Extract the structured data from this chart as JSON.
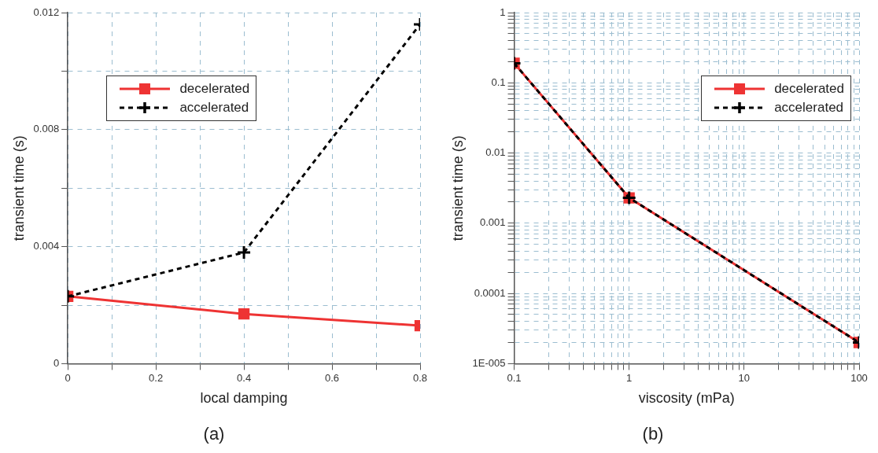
{
  "chart_data": [
    {
      "type": "line",
      "title": "(a)",
      "xlabel": "local damping",
      "ylabel": "transient time (s)",
      "x": [
        0,
        0.4,
        0.8
      ],
      "xlim": [
        0,
        0.8
      ],
      "xticks": [
        0,
        {
          "value": 0.1,
          "label": null
        },
        0.2,
        {
          "value": 0.3,
          "label": null
        },
        0.4,
        {
          "value": 0.5,
          "label": null
        },
        0.6,
        {
          "value": 0.7,
          "label": null
        },
        0.8
      ],
      "ylim": [
        0,
        0.012
      ],
      "yticks": [
        0,
        {
          "value": 0.002,
          "label": null
        },
        0.004,
        {
          "value": 0.006,
          "label": null
        },
        0.008,
        {
          "value": 0.01,
          "label": null
        },
        0.012
      ],
      "grid": true,
      "legend": "top left",
      "series": [
        {
          "name": "decelerated",
          "color": "#ee3333",
          "marker": "square",
          "line_style": "solid",
          "values": [
            0.0023,
            0.0017,
            0.0013
          ]
        },
        {
          "name": "accelerated",
          "color": "#000000",
          "marker": "cross",
          "line_style": "dashed",
          "values": [
            0.0023,
            0.0038,
            0.0116
          ]
        }
      ]
    },
    {
      "type": "line",
      "title": "(b)",
      "xlabel": "viscosity (mPa)",
      "ylabel": "transient time (s)",
      "x": [
        0.1,
        1,
        100
      ],
      "log": "xy",
      "xlim": [
        0.1,
        100
      ],
      "xticks": [
        0.1,
        {
          "value": 0.2,
          "label": null
        },
        {
          "value": 0.3,
          "label": null
        },
        {
          "value": 0.4,
          "label": null
        },
        {
          "value": 0.5,
          "label": null
        },
        {
          "value": 0.6,
          "label": null
        },
        {
          "value": 0.7,
          "label": null
        },
        {
          "value": 0.8,
          "label": null
        },
        {
          "value": 0.9,
          "label": null
        },
        1,
        {
          "value": 2,
          "label": null
        },
        {
          "value": 3,
          "label": null
        },
        {
          "value": 4,
          "label": null
        },
        {
          "value": 5,
          "label": null
        },
        {
          "value": 6,
          "label": null
        },
        {
          "value": 7,
          "label": null
        },
        {
          "value": 8,
          "label": null
        },
        {
          "value": 9,
          "label": null
        },
        10,
        {
          "value": 20,
          "label": null
        },
        {
          "value": 30,
          "label": null
        },
        {
          "value": 40,
          "label": null
        },
        {
          "value": 50,
          "label": null
        },
        {
          "value": 60,
          "label": null
        },
        {
          "value": 70,
          "label": null
        },
        {
          "value": 80,
          "label": null
        },
        {
          "value": 90,
          "label": null
        },
        100
      ],
      "ylim": [
        1e-05,
        1
      ],
      "yticks": [
        {
          "value": 1e-05,
          "label": "1E-005"
        },
        {
          "value": 2e-05,
          "label": null
        },
        {
          "value": 3e-05,
          "label": null
        },
        {
          "value": 4e-05,
          "label": null
        },
        {
          "value": 5e-05,
          "label": null
        },
        {
          "value": 6e-05,
          "label": null
        },
        {
          "value": 7e-05,
          "label": null
        },
        {
          "value": 8e-05,
          "label": null
        },
        {
          "value": 9e-05,
          "label": null
        },
        0.0001,
        {
          "value": 0.0002,
          "label": null
        },
        {
          "value": 0.0003,
          "label": null
        },
        {
          "value": 0.0004,
          "label": null
        },
        {
          "value": 0.0005,
          "label": null
        },
        {
          "value": 0.0006,
          "label": null
        },
        {
          "value": 0.0007,
          "label": null
        },
        {
          "value": 0.0008,
          "label": null
        },
        {
          "value": 0.0009,
          "label": null
        },
        0.001,
        {
          "value": 0.002,
          "label": null
        },
        {
          "value": 0.003,
          "label": null
        },
        {
          "value": 0.004,
          "label": null
        },
        {
          "value": 0.005,
          "label": null
        },
        {
          "value": 0.006,
          "label": null
        },
        {
          "value": 0.007,
          "label": null
        },
        {
          "value": 0.008,
          "label": null
        },
        {
          "value": 0.009,
          "label": null
        },
        0.01,
        {
          "value": 0.02,
          "label": null
        },
        {
          "value": 0.03,
          "label": null
        },
        {
          "value": 0.04,
          "label": null
        },
        {
          "value": 0.05,
          "label": null
        },
        {
          "value": 0.06,
          "label": null
        },
        {
          "value": 0.07,
          "label": null
        },
        {
          "value": 0.08,
          "label": null
        },
        {
          "value": 0.09,
          "label": null
        },
        0.1,
        {
          "value": 0.2,
          "label": null
        },
        {
          "value": 0.3,
          "label": null
        },
        {
          "value": 0.4,
          "label": null
        },
        {
          "value": 0.5,
          "label": null
        },
        {
          "value": 0.6,
          "label": null
        },
        {
          "value": 0.7,
          "label": null
        },
        {
          "value": 0.8,
          "label": null
        },
        {
          "value": 0.9,
          "label": null
        },
        1
      ],
      "grid": true,
      "legend": "top right",
      "series": [
        {
          "name": "decelerated",
          "color": "#ee3333",
          "marker": "square",
          "line_style": "solid",
          "values": [
            0.19,
            0.0023,
            2e-05
          ]
        },
        {
          "name": "accelerated",
          "color": "#000000",
          "marker": "cross",
          "line_style": "dashed",
          "values": [
            0.19,
            0.0023,
            2e-05
          ]
        }
      ]
    }
  ]
}
